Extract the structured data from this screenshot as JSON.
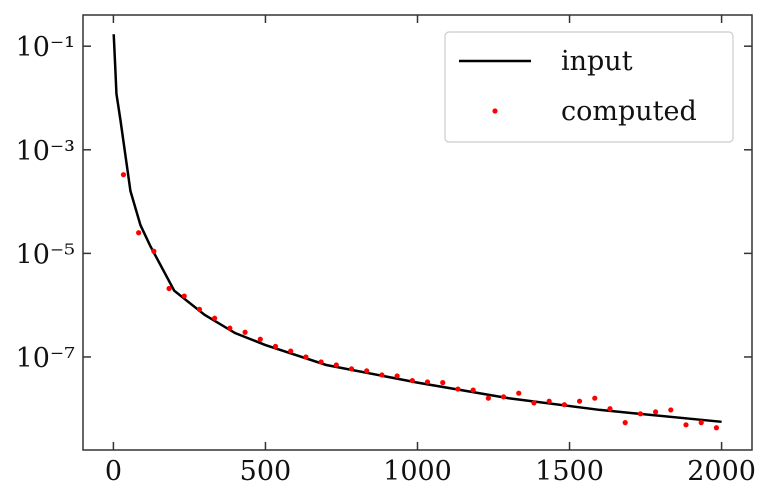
{
  "chart_data": {
    "type": "line",
    "log_y": true,
    "legend": "upper right",
    "xlim": [
      -100,
      2100
    ],
    "xticks": [
      0,
      500,
      1000,
      1500,
      2000
    ],
    "ylim": [
      1.6e-09,
      0.4
    ],
    "yticks": [
      {
        "value": 0.1,
        "label": "10⁻¹"
      },
      {
        "value": 0.001,
        "label": "10⁻³"
      },
      {
        "value": 1e-05,
        "label": "10⁻⁵"
      },
      {
        "value": 1e-07,
        "label": "10⁻⁷"
      }
    ],
    "series": [
      {
        "name": "input",
        "type": "line",
        "color": "#000000",
        "x": [
          1,
          5,
          10,
          23,
          56,
          89,
          121,
          200,
          300,
          400,
          500,
          700,
          1000,
          1300,
          1600,
          2000
        ],
        "values": [
          0.17,
          0.054,
          0.012,
          0.0038,
          0.00016,
          3.5e-05,
          1.4e-05,
          1.9e-06,
          6.5e-07,
          2.9e-07,
          1.7e-07,
          7e-08,
          3.2e-08,
          1.6e-08,
          9.5e-09,
          5.6e-09
        ]
      },
      {
        "name": "computed",
        "type": "scatter",
        "color": "#ff0000",
        "x": [
          33,
          83,
          133,
          183,
          233,
          283,
          333,
          383,
          433,
          483,
          533,
          583,
          633,
          683,
          733,
          783,
          833,
          883,
          933,
          983,
          1033,
          1083,
          1133,
          1183,
          1233,
          1283,
          1333,
          1383,
          1433,
          1483,
          1533,
          1583,
          1633,
          1683,
          1733,
          1783,
          1833,
          1883,
          1933,
          1983
        ],
        "values": [
          0.00033,
          2.5e-05,
          1.1e-05,
          2.1e-06,
          1.5e-06,
          8.3e-07,
          5.6e-07,
          3.6e-07,
          3e-07,
          2.2e-07,
          1.6e-07,
          1.3e-07,
          1e-07,
          8e-08,
          7e-08,
          5.9e-08,
          5.4e-08,
          4.5e-08,
          4.3e-08,
          3.5e-08,
          3.3e-08,
          3.2e-08,
          2.4e-08,
          2.3e-08,
          1.6e-08,
          1.7e-08,
          2e-08,
          1.3e-08,
          1.4e-08,
          1.2e-08,
          1.4e-08,
          1.6e-08,
          1e-08,
          5.4e-09,
          8e-09,
          8.7e-09,
          9.5e-09,
          4.9e-09,
          5.4e-09,
          4.3e-09
        ]
      }
    ]
  }
}
